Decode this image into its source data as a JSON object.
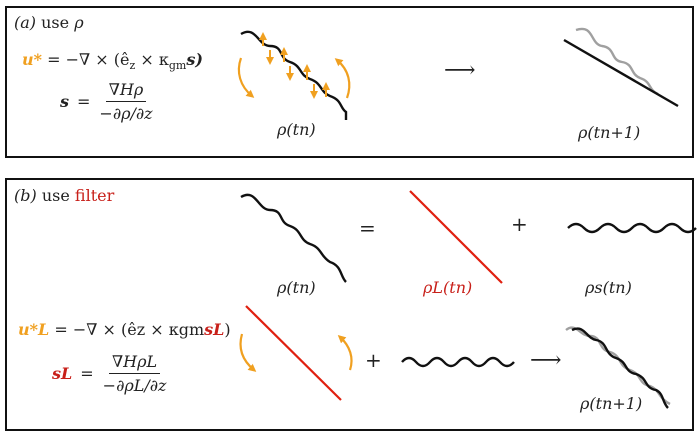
{
  "panel_a": {
    "label": "(a)",
    "title_use": "use",
    "title_var": "ρ",
    "eq1_lhs": "u*",
    "eq1_rhs": "= −∇ × (ê",
    "eq1_sub": "z",
    "eq1_rest": "× κ",
    "eq1_gm": "gm",
    "eq1_s": "s)",
    "eq2_lhs": "s",
    "eq2_eq": "=",
    "eq2_num": "∇Hρ",
    "eq2_den": "−∂ρ/∂z",
    "label_tn": "ρ(tn)",
    "label_tn1": "ρ(tn+1)",
    "arrow": "⟶"
  },
  "panel_b": {
    "label": "(b)",
    "title_use": "use",
    "title_filter": "filter",
    "equals": "=",
    "plus_top": "+",
    "plus_bottom": "+",
    "arrow": "⟶",
    "label_rho_tn": "ρ(tn)",
    "label_rhoL": "ρL(tn)",
    "label_rhos": "ρs(tn)",
    "label_tn1": "ρ(tn+1)",
    "eq1_lhs": "u*L",
    "eq1_rhs": "= −∇ × (êz × κgm",
    "eq1_s": "sL",
    "eq1_close": ")",
    "eq2_lhs": "sL",
    "eq2_eq": "=",
    "eq2_num": "∇HρL",
    "eq2_den": "−∂ρL/∂z"
  },
  "colors": {
    "orange": "#f0a020",
    "red": "#e02010",
    "gray": "#a0a0a0",
    "black": "#111111"
  }
}
